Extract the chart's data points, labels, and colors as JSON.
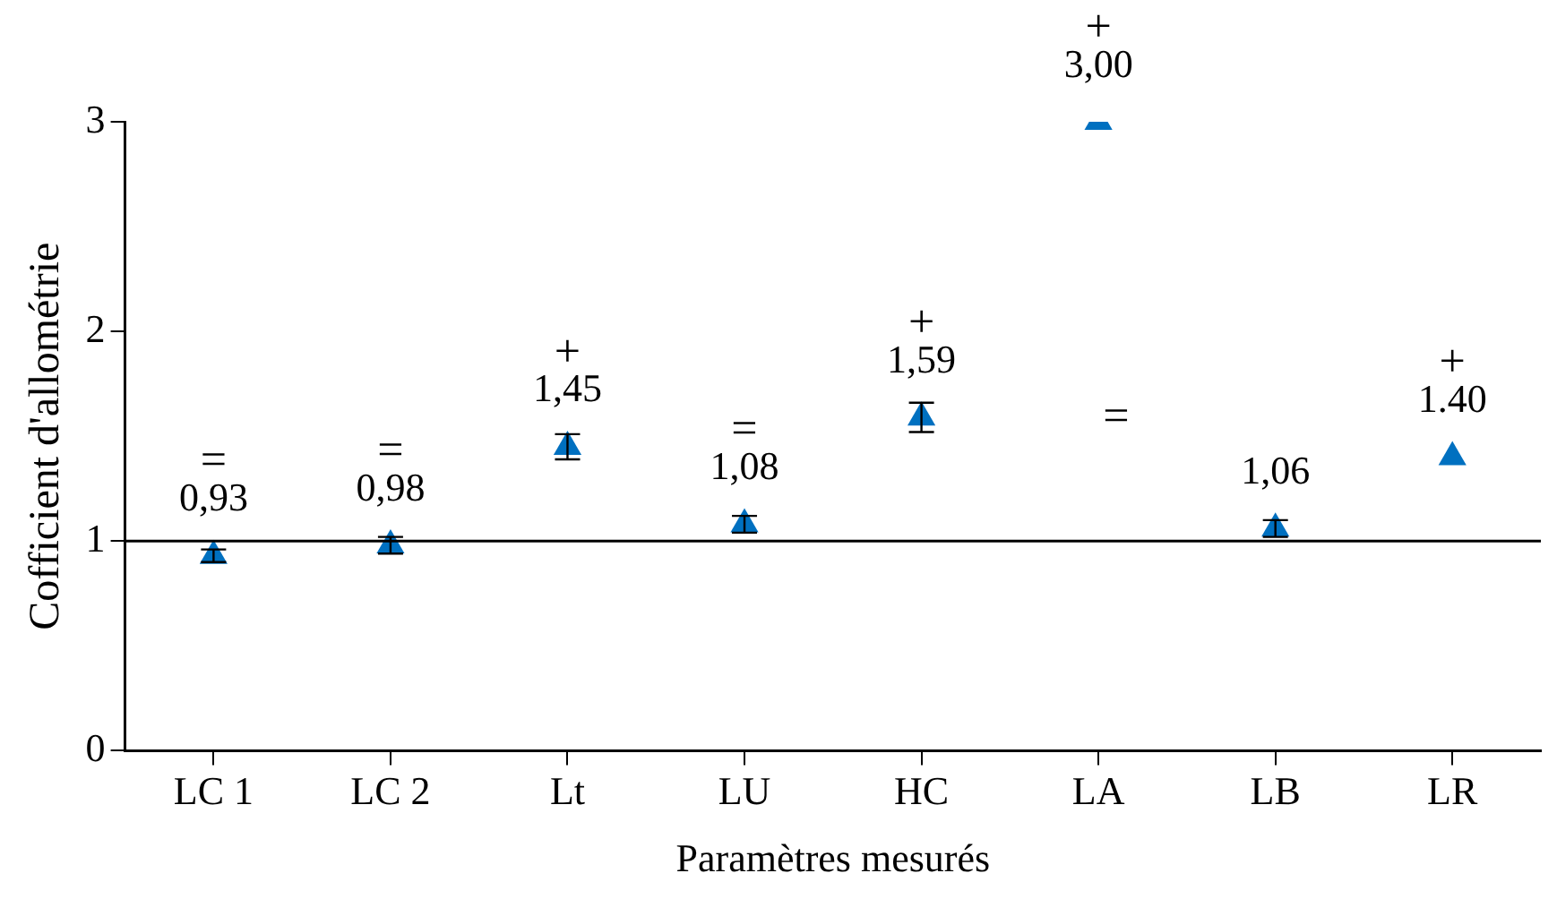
{
  "chart_data": {
    "type": "scatter",
    "xlabel": "Paramètres mesurés",
    "ylabel": "Cofficient d'allométrie",
    "categories": [
      "LC 1",
      "LC 2",
      "Lt",
      "LU",
      "HC",
      "LA",
      "LB",
      "LR"
    ],
    "series": [
      {
        "color": "#0070c0",
        "values": [
          0.93,
          0.98,
          1.45,
          1.08,
          1.59,
          3.0,
          1.06,
          1.4
        ],
        "errors": [
          0.03,
          0.04,
          0.06,
          0.04,
          0.07,
          null,
          0.04,
          null
        ],
        "value_labels": [
          "0,93",
          "0,98",
          "1,45",
          "1,08",
          "1,59",
          "3,00",
          "1,06",
          "1.40"
        ]
      }
    ],
    "ylim": [
      0,
      3
    ],
    "yticks": [
      0,
      1,
      2,
      3
    ],
    "grid": false,
    "legend": false,
    "marker": "triangle",
    "ref_lines": [
      {
        "axis": "y",
        "value": 1,
        "color": "#000000"
      }
    ],
    "annotations": [
      {
        "text": "=",
        "x": "LC 1",
        "y": 0.93
      },
      {
        "text": "=",
        "x": "LC 2",
        "y": 0.98
      },
      {
        "text": "+",
        "x": "Lt",
        "y": 1.45
      },
      {
        "text": "=",
        "x": "LU",
        "y": 1.08
      },
      {
        "text": "+",
        "x": "HC",
        "y": 1.59
      },
      {
        "text": "+",
        "x": "LA",
        "y": 3.0
      },
      "=",
      {
        "text": "+",
        "x": "LR",
        "y": 1.4
      }
    ]
  }
}
